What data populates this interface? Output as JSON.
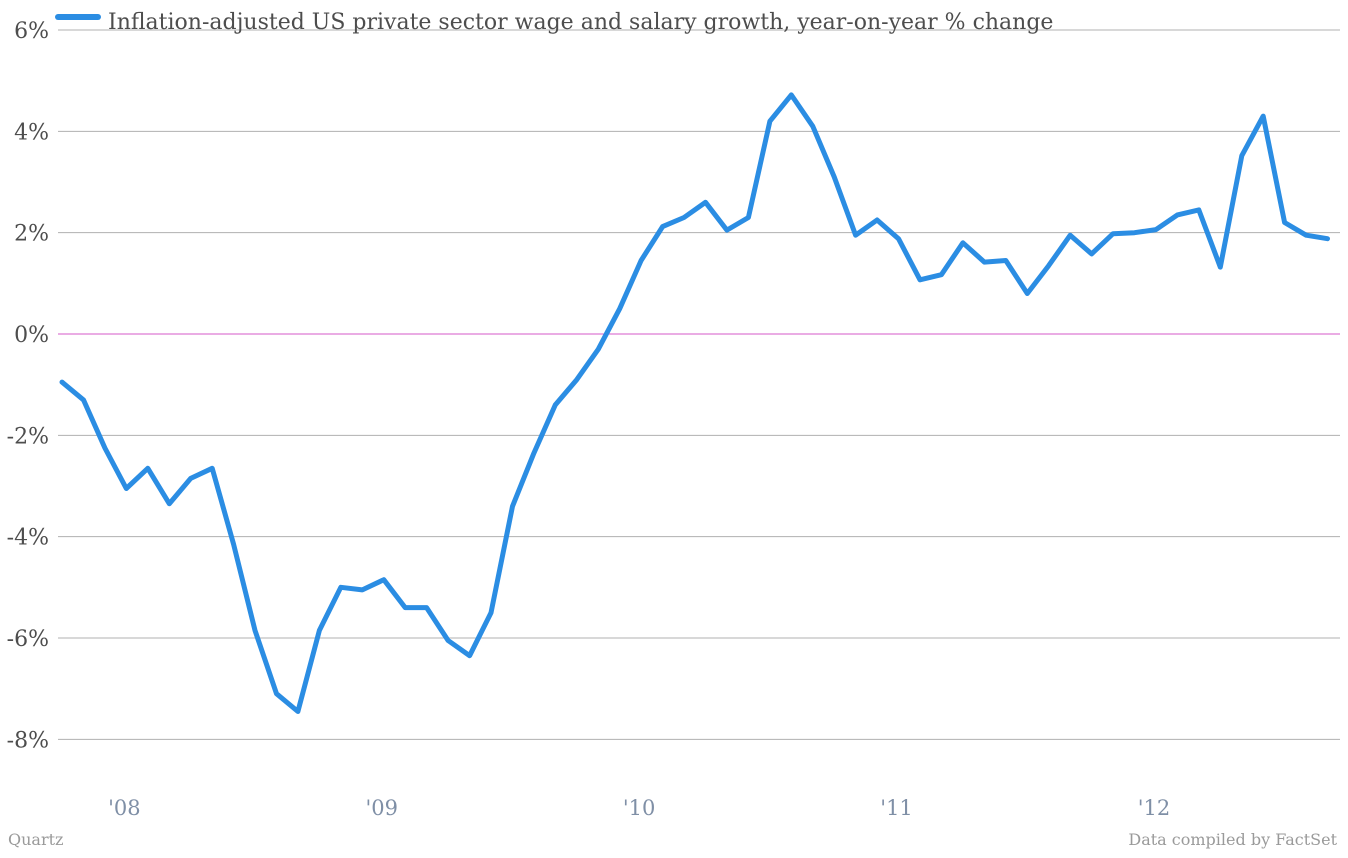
{
  "chart_data": {
    "type": "line",
    "title": "",
    "xlabel": "",
    "ylabel": "",
    "ylim": [
      -9,
      6
    ],
    "y_ticks": [
      {
        "value": 6,
        "label": "6%"
      },
      {
        "value": 4,
        "label": "4%"
      },
      {
        "value": 2,
        "label": "2%"
      },
      {
        "value": 0,
        "label": "0%"
      },
      {
        "value": -2,
        "label": "-2%"
      },
      {
        "value": -4,
        "label": "-4%"
      },
      {
        "value": -6,
        "label": "-6%"
      },
      {
        "value": -8,
        "label": "-8%"
      }
    ],
    "x_ticks": [
      {
        "value": "2008-01",
        "label": "'08"
      },
      {
        "value": "2009-01",
        "label": "'09"
      },
      {
        "value": "2010-01",
        "label": "'10"
      },
      {
        "value": "2011-01",
        "label": "'11"
      },
      {
        "value": "2012-01",
        "label": "'12"
      }
    ],
    "grid": true,
    "legend_position": "top-left",
    "colors": {
      "series": "#2b8de3",
      "zero_line": "#d65ac9",
      "grid": "#b0b0b0"
    },
    "series": [
      {
        "name": "Inflation-adjusted US private sector wage and salary growth, year-on-year % change",
        "x": [
          "2007-10",
          "2007-11",
          "2007-12",
          "2008-01",
          "2008-02",
          "2008-03",
          "2008-04",
          "2008-05",
          "2008-06",
          "2008-07",
          "2008-08",
          "2008-09",
          "2008-10",
          "2008-11",
          "2008-12",
          "2009-01",
          "2009-02",
          "2009-03",
          "2009-04",
          "2009-05",
          "2009-06",
          "2009-07",
          "2009-08",
          "2009-09",
          "2009-10",
          "2009-11",
          "2009-12",
          "2010-01",
          "2010-02",
          "2010-03",
          "2010-04",
          "2010-05",
          "2010-06",
          "2010-07",
          "2010-08",
          "2010-09",
          "2010-10",
          "2010-11",
          "2010-12",
          "2011-01",
          "2011-02",
          "2011-03",
          "2011-04",
          "2011-05",
          "2011-06",
          "2011-07",
          "2011-08",
          "2011-09",
          "2011-10",
          "2011-11",
          "2011-12",
          "2012-01",
          "2012-02",
          "2012-03",
          "2012-04",
          "2012-05",
          "2012-06",
          "2012-07",
          "2012-08",
          "2012-09"
        ],
        "values": [
          -0.95,
          -1.3,
          -2.25,
          -3.05,
          -2.65,
          -3.35,
          -2.85,
          -2.65,
          -4.15,
          -5.85,
          -7.1,
          -7.45,
          -5.85,
          -5.0,
          -5.05,
          -4.85,
          -5.4,
          -5.4,
          -6.05,
          -6.35,
          -5.5,
          -3.4,
          -2.35,
          -1.4,
          -0.9,
          -0.3,
          0.5,
          1.45,
          2.12,
          2.3,
          2.6,
          2.05,
          2.3,
          4.2,
          4.72,
          4.1,
          3.1,
          1.95,
          2.25,
          1.88,
          1.07,
          1.17,
          1.8,
          1.42,
          1.45,
          0.8,
          1.35,
          1.95,
          1.58,
          1.98,
          2.0,
          2.06,
          2.35,
          2.45,
          1.32,
          3.52,
          4.3,
          2.2,
          1.95,
          1.88
        ]
      }
    ]
  },
  "footer": {
    "source_left": "Quartz",
    "source_right": "Data compiled by FactSet"
  }
}
